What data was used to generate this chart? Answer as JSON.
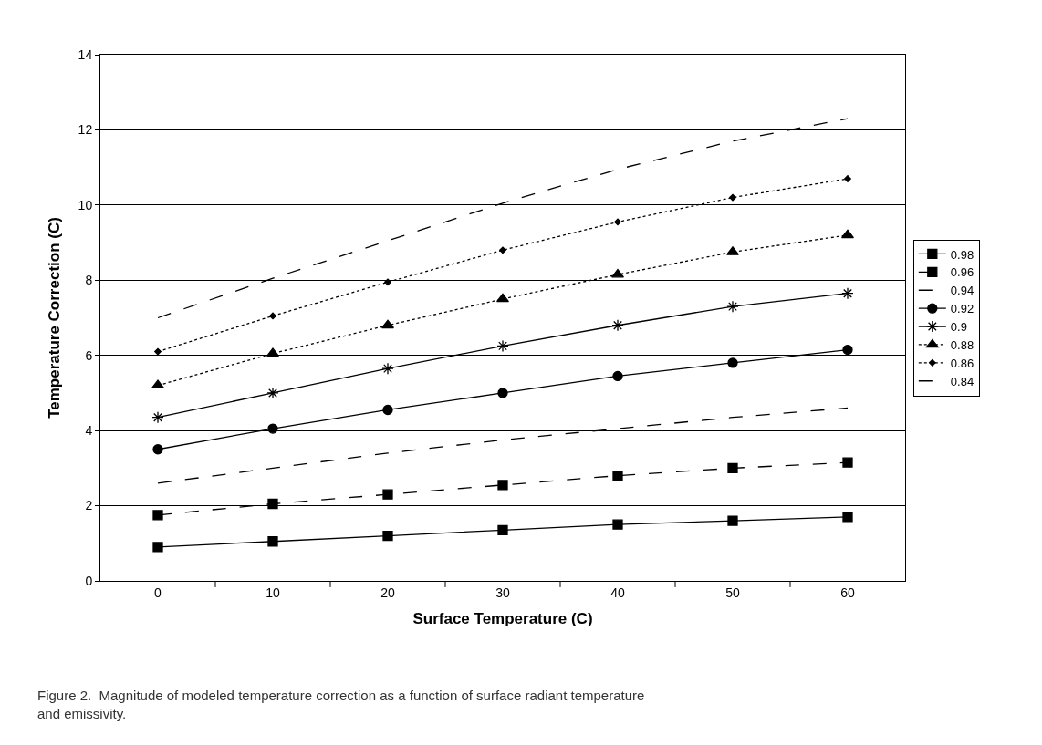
{
  "chart_data": {
    "type": "line",
    "xlabel": "Surface Temperature (C)",
    "ylabel": "Temperature Correction (C)",
    "categories": [
      "0",
      "10",
      "20",
      "30",
      "40",
      "50",
      "60"
    ],
    "ylim": [
      0,
      14
    ],
    "yticks": [
      0,
      2,
      4,
      6,
      8,
      10,
      12,
      14
    ],
    "grid": "y",
    "legend": "right",
    "series": [
      {
        "name": "0.98",
        "color": "#000000",
        "marker": "square",
        "line_style": "solid",
        "values": [
          0.9,
          1.05,
          1.2,
          1.35,
          1.5,
          1.6,
          1.7
        ]
      },
      {
        "name": "0.96",
        "color": "#000000",
        "marker": "square",
        "line_style": "dashed",
        "values": [
          1.75,
          2.05,
          2.3,
          2.55,
          2.8,
          3.0,
          3.15
        ]
      },
      {
        "name": "0.94",
        "color": "#000000",
        "marker": "none",
        "line_style": "dashed",
        "values": [
          2.6,
          3.0,
          3.4,
          3.75,
          4.05,
          4.35,
          4.6
        ]
      },
      {
        "name": "0.92",
        "color": "#000000",
        "marker": "circle",
        "line_style": "solid",
        "values": [
          3.5,
          4.05,
          4.55,
          5.0,
          5.45,
          5.8,
          6.15
        ]
      },
      {
        "name": "0.9",
        "color": "#000000",
        "marker": "cross",
        "line_style": "solid",
        "values": [
          4.35,
          5.0,
          5.65,
          6.25,
          6.8,
          7.3,
          7.65
        ]
      },
      {
        "name": "0.88",
        "color": "#000000",
        "marker": "triangle",
        "line_style": "dotted",
        "values": [
          5.2,
          6.05,
          6.8,
          7.5,
          8.15,
          8.75,
          9.2
        ]
      },
      {
        "name": "0.86",
        "color": "#000000",
        "marker": "diamond",
        "line_style": "dotted",
        "values": [
          6.1,
          7.05,
          7.95,
          8.8,
          9.55,
          10.2,
          10.7
        ]
      },
      {
        "name": "0.84",
        "color": "#000000",
        "marker": "none",
        "line_style": "dashed",
        "values": [
          7.0,
          8.05,
          9.05,
          10.05,
          10.95,
          11.7,
          12.3
        ]
      }
    ],
    "annotations": [
      "Figure 2.  Magnitude of modeled temperature correction as a function of surface radiant temperature\nand emissivity."
    ]
  }
}
